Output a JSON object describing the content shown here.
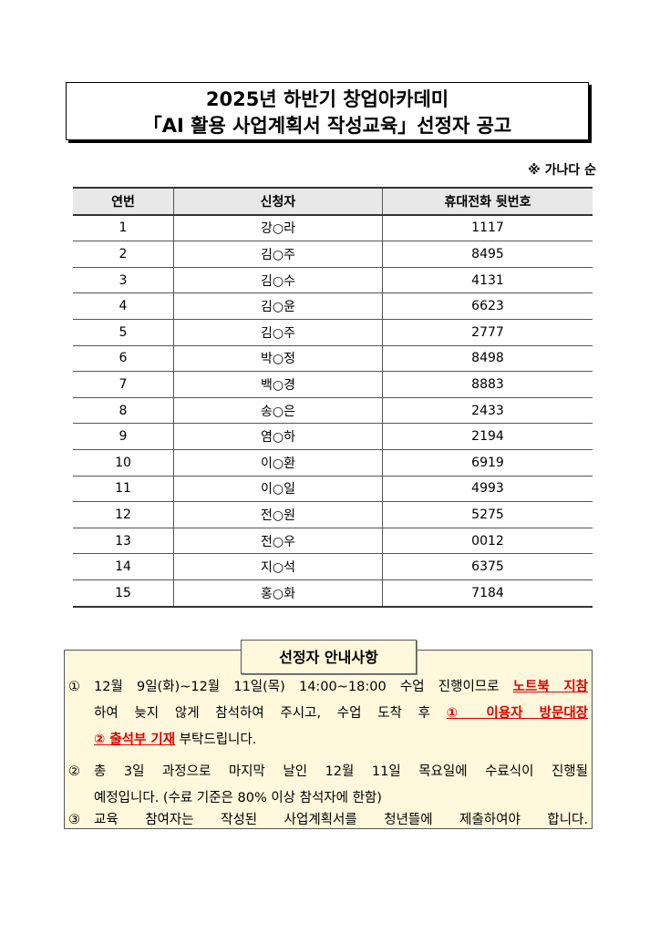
{
  "title": {
    "line1": "2025년 하반기 창업아카데미",
    "line2": "「AI 활용 사업계획서 작성교육」선정자 공고"
  },
  "sort_note": "※ 가나다 순",
  "table": {
    "headers": [
      "연번",
      "신청자",
      "휴대전화 뒷번호"
    ],
    "rows": [
      [
        "1",
        "강○라",
        "1117"
      ],
      [
        "2",
        "김○주",
        "8495"
      ],
      [
        "3",
        "김○수",
        "4131"
      ],
      [
        "4",
        "김○윤",
        "6623"
      ],
      [
        "5",
        "김○주",
        "2777"
      ],
      [
        "6",
        "박○정",
        "8498"
      ],
      [
        "7",
        "백○경",
        "8883"
      ],
      [
        "8",
        "송○은",
        "2433"
      ],
      [
        "9",
        "염○하",
        "2194"
      ],
      [
        "10",
        "이○환",
        "6919"
      ],
      [
        "11",
        "이○일",
        "4993"
      ],
      [
        "12",
        "전○원",
        "5275"
      ],
      [
        "13",
        "전○우",
        "0012"
      ],
      [
        "14",
        "지○석",
        "6375"
      ],
      [
        "15",
        "홍○화",
        "7184"
      ]
    ]
  },
  "info": {
    "label": "선정자 안내사항",
    "items": [
      {
        "num": "①",
        "a": "12월 9일(화)~12월 11일(목) 14:00~18:00 수업 진행이므로 ",
        "b": "노트북 지참",
        "c": "하여 늦지 않게 참석하여 주시고, 수업 도착 후 ",
        "d": "① 이용자 방문대장",
        "e": "② 출석부 기재",
        "f": " 부탁드립니다."
      },
      {
        "num": "②",
        "a": "총 3일 과정으로 마지막 날인 12월 11일 목요일에 수료식이 진행될",
        "c": "예정입니다. (수료 기준은 80% 이상 참석자에 한함)"
      },
      {
        "num": "③",
        "a": "교육 참여자는 작성된 사업계획서를 청년뜰에 제출하여야 합니다."
      }
    ]
  },
  "colors": {
    "highlight": "#e00000",
    "info_bg": "#fff8dc",
    "header_bg": "#e8e8e8"
  }
}
